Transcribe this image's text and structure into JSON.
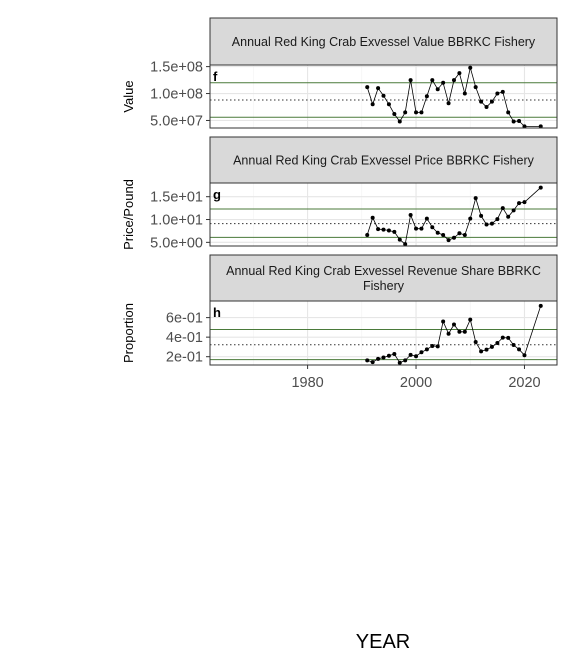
{
  "chart_data": {
    "type": "line",
    "xlabel": "YEAR",
    "xlim": [
      1962,
      2026
    ],
    "x_ticks": [
      1980,
      2000,
      2020
    ],
    "x_tick_labels": [
      "1980",
      "2000",
      "2020"
    ],
    "reference_line_colors": {
      "green": "#4a7a3a",
      "dotted": "#333333"
    },
    "panels": [
      {
        "title": "Annual Red King Crab Exvessel Value BBRKC Fishery",
        "tag": "f",
        "ylabel": "Value",
        "ylim": [
          36000000.0,
          153000000.0
        ],
        "y_ticks": [
          50000000.0,
          100000000.0,
          150000000.0
        ],
        "y_tick_labels": [
          "5.0e+07",
          "1.0e+08",
          "1.5e+08"
        ],
        "ref_upper": 120000000.0,
        "ref_mean": 88000000.0,
        "ref_lower": 56000000.0,
        "segments": [
          {
            "x": [
              1991,
              1992,
              1993,
              1994,
              1995,
              1996,
              1997,
              1998,
              1999,
              2000,
              2001,
              2002,
              2003,
              2004,
              2005,
              2006,
              2007,
              2008,
              2009,
              2010,
              2011,
              2012,
              2013,
              2014,
              2015,
              2016,
              2017,
              2018,
              2019,
              2020
            ],
            "y": [
              112000000.0,
              80000000.0,
              110000000.0,
              96000000.0,
              80000000.0,
              62000000.0,
              48000000.0,
              65000000.0,
              125000000.0,
              65000000.0,
              65000000.0,
              95000000.0,
              125000000.0,
              108000000.0,
              120000000.0,
              82000000.0,
              125000000.0,
              138000000.0,
              100000000.0,
              148000000.0,
              112000000.0,
              85000000.0,
              75000000.0,
              85000000.0,
              100000000.0,
              103000000.0,
              65000000.0,
              48000000.0,
              49000000.0,
              39000000.0
            ]
          },
          {
            "x": [
              2020,
              2023
            ],
            "y": [
              39000000.0,
              39000000.0
            ]
          }
        ]
      },
      {
        "title": "Annual Red King Crab Exvessel Price BBRKC Fishery",
        "tag": "g",
        "ylabel": "Price/Pound",
        "ylim": [
          4.2,
          18.0
        ],
        "y_ticks": [
          5.0,
          10.0,
          15.0
        ],
        "y_tick_labels": [
          "5.0e+00",
          "1.0e+01",
          "1.5e+01"
        ],
        "ref_upper": 12.3,
        "ref_mean": 9.1,
        "ref_lower": 6.1,
        "segments": [
          {
            "x": [
              1991,
              1992,
              1993,
              1994,
              1995,
              1996,
              1997,
              1998,
              1999,
              2000,
              2001,
              2002,
              2003,
              2004,
              2005,
              2006,
              2007,
              2008,
              2009,
              2010,
              2011,
              2012,
              2013,
              2014,
              2015,
              2016,
              2017,
              2018,
              2019,
              2020
            ],
            "y": [
              6.6,
              10.4,
              7.9,
              7.8,
              7.6,
              7.3,
              5.6,
              4.6,
              11.0,
              8.0,
              8.0,
              10.2,
              8.3,
              7.1,
              6.6,
              5.5,
              6.0,
              7.0,
              6.6,
              10.2,
              14.7,
              10.8,
              8.9,
              9.1,
              10.1,
              12.5,
              10.6,
              12.0,
              13.6,
              13.8
            ]
          },
          {
            "x": [
              2020,
              2023
            ],
            "y": [
              13.8,
              17.0
            ]
          }
        ]
      },
      {
        "title": "Annual Red King Crab Exvessel Revenue Share BBRKC Fishery",
        "tag": "h",
        "ylabel": "Proportion",
        "ylim": [
          0.115,
          0.77
        ],
        "y_ticks": [
          0.2,
          0.4,
          0.6
        ],
        "y_tick_labels": [
          "2e-01",
          "4e-01",
          "6e-01"
        ],
        "ref_upper": 0.478,
        "ref_mean": 0.322,
        "ref_lower": 0.17,
        "segments": [
          {
            "x": [
              1991,
              1992,
              1993,
              1994,
              1995,
              1996,
              1997,
              1998,
              1999,
              2000,
              2001,
              2002,
              2003,
              2004,
              2005,
              2006,
              2007,
              2008,
              2009,
              2010,
              2011,
              2012,
              2013,
              2014,
              2015,
              2016,
              2017,
              2018,
              2019,
              2020
            ],
            "y": [
              0.162,
              0.145,
              0.178,
              0.192,
              0.21,
              0.228,
              0.138,
              0.162,
              0.218,
              0.205,
              0.245,
              0.275,
              0.31,
              0.305,
              0.56,
              0.435,
              0.53,
              0.455,
              0.455,
              0.58,
              0.35,
              0.255,
              0.272,
              0.3,
              0.34,
              0.395,
              0.392,
              0.32,
              0.275,
              0.215
            ]
          },
          {
            "x": [
              2020,
              2023
            ],
            "y": [
              0.215,
              0.72
            ]
          }
        ]
      }
    ]
  }
}
